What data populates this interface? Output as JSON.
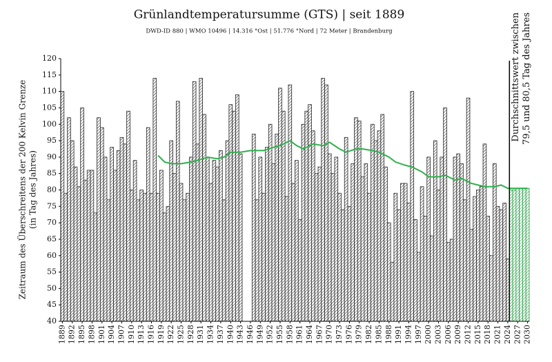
{
  "chart_data": {
    "type": "bar",
    "title": "Grünlandtemperatursumme (GTS) | seit 1889",
    "subtitle": "DWD-ID 880 | WMO 10496 | 14.316 °Ost | 51.776 °Nord | 72 Meter | Brandenburg",
    "ylabel": [
      "Zeitraum des Überschreitens der 200 Kelvin Grenze",
      "(in Tag des Jahres)"
    ],
    "annotation": [
      "Durchschnittswert zwischen",
      "79,5 und 80,5 Tag des Jahres"
    ],
    "color": "#222222",
    "x": [
      1889,
      1890,
      1891,
      1892,
      1893,
      1894,
      1895,
      1896,
      1897,
      1898,
      1899,
      1900,
      1901,
      1902,
      1903,
      1904,
      1905,
      1906,
      1907,
      1908,
      1909,
      1910,
      1911,
      1912,
      1913,
      1914,
      1915,
      1916,
      1917,
      1918,
      1919,
      1920,
      1921,
      1922,
      1923,
      1924,
      1925,
      1926,
      1927,
      1928,
      1929,
      1930,
      1931,
      1932,
      1933,
      1934,
      1935,
      1936,
      1937,
      1938,
      1939,
      1940,
      1941,
      1942,
      1943,
      1944,
      1945,
      1946,
      1947,
      1948,
      1949,
      1950,
      1951,
      1952,
      1953,
      1954,
      1955,
      1956,
      1957,
      1958,
      1959,
      1960,
      1961,
      1962,
      1963,
      1964,
      1965,
      1966,
      1967,
      1968,
      1969,
      1970,
      1971,
      1972,
      1973,
      1974,
      1975,
      1976,
      1977,
      1978,
      1979,
      1980,
      1981,
      1982,
      1983,
      1984,
      1985,
      1986,
      1987,
      1988,
      1989,
      1990,
      1991,
      1992,
      1993,
      1994,
      1995,
      1996,
      1997,
      1998,
      1999,
      2000,
      2001,
      2002,
      2003,
      2004,
      2005,
      2006,
      2007,
      2008,
      2009,
      2010,
      2011,
      2012,
      2013,
      2014,
      2015,
      2016,
      2017,
      2018,
      2019,
      2020,
      2021,
      2022,
      2023,
      2024
    ],
    "values": [
      110,
      79,
      102,
      95,
      87,
      81,
      105,
      83,
      86,
      86,
      73,
      102,
      99,
      90,
      77,
      93,
      86,
      92,
      96,
      94,
      104,
      80,
      89,
      77,
      80,
      79,
      99,
      79,
      114,
      79,
      86,
      73,
      75,
      95,
      85,
      107,
      82,
      77,
      79,
      90,
      113,
      94,
      114,
      103,
      90,
      82,
      89,
      87,
      92,
      77,
      95,
      106,
      104,
      109,
      91,
      null,
      null,
      null,
      97,
      77,
      90,
      79,
      93,
      100,
      88,
      97,
      111,
      104,
      78,
      112,
      82,
      89,
      71,
      100,
      104,
      106,
      98,
      85,
      87,
      114,
      112,
      91,
      85,
      90,
      79,
      74,
      96,
      75,
      88,
      102,
      101,
      84,
      88,
      79,
      100,
      95,
      98,
      103,
      87,
      70,
      58,
      79,
      74,
      82,
      82,
      76,
      110,
      71,
      61,
      81,
      72,
      90,
      66,
      95,
      80,
      90,
      105,
      64,
      65,
      90,
      91,
      88,
      77,
      108,
      68,
      78,
      80,
      81,
      94,
      72,
      60,
      88,
      75,
      74,
      76,
      59
    ],
    "projection": {
      "color": "#1a9a3a",
      "x": [
        2025,
        2026,
        2027,
        2028,
        2029,
        2030
      ],
      "values": [
        80,
        80,
        80.5,
        80.5,
        80.5,
        80.5
      ]
    },
    "trend": {
      "color": "#2db04b",
      "x": [
        1918,
        1920,
        1922,
        1925,
        1928,
        1930,
        1933,
        1936,
        1938,
        1940,
        1943,
        1946,
        1950,
        1953,
        1955,
        1957,
        1958,
        1960,
        1962,
        1965,
        1968,
        1970,
        1973,
        1975,
        1978,
        1980,
        1983,
        1985,
        1988,
        1990,
        1993,
        1995,
        1998,
        2000,
        2003,
        2005,
        2008,
        2010,
        2013,
        2015,
        2017,
        2020,
        2022,
        2024,
        2027,
        2030
      ],
      "values": [
        90.5,
        88.5,
        88,
        88,
        88.5,
        89,
        90,
        89.5,
        90,
        91.5,
        91.5,
        92,
        92,
        93,
        93.5,
        94.5,
        95,
        93.5,
        92.5,
        94,
        93.5,
        94.5,
        92.5,
        91.5,
        92.5,
        92.5,
        92,
        91.5,
        90,
        88.5,
        87.5,
        87,
        85.5,
        84,
        84,
        84.5,
        83,
        83.5,
        82,
        81.5,
        81,
        81,
        81.5,
        80.5,
        80.5,
        80.5
      ]
    },
    "xlim": [
      1888.5,
      2030.5
    ],
    "xticks": [
      1889,
      1892,
      1895,
      1898,
      1901,
      1904,
      1907,
      1910,
      1913,
      1916,
      1919,
      1922,
      1925,
      1928,
      1931,
      1934,
      1937,
      1940,
      1943,
      1946,
      1949,
      1952,
      1955,
      1958,
      1961,
      1964,
      1967,
      1970,
      1973,
      1976,
      1979,
      1982,
      1985,
      1988,
      1991,
      1994,
      1997,
      2000,
      2003,
      2006,
      2009,
      2012,
      2015,
      2018,
      2021,
      2024,
      2027,
      2030
    ],
    "ylim": [
      40,
      120
    ],
    "yticks": [
      40,
      45,
      50,
      55,
      60,
      65,
      70,
      75,
      80,
      85,
      90,
      95,
      100,
      105,
      110,
      115,
      120
    ]
  }
}
